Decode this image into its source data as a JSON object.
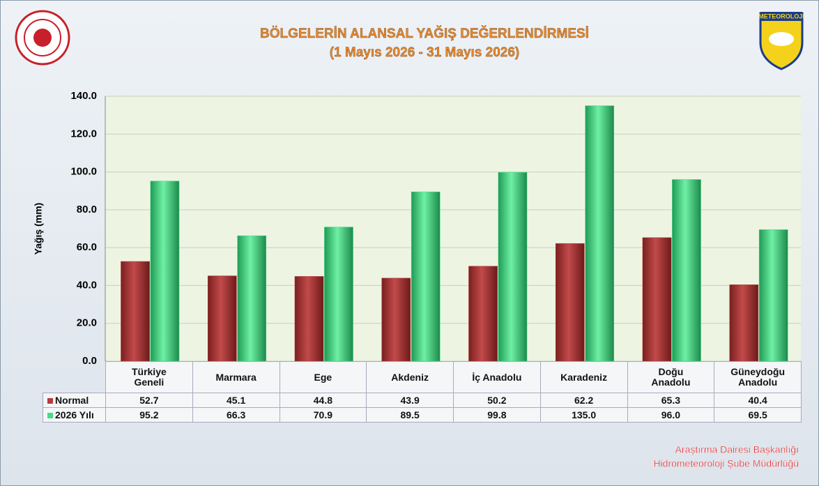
{
  "chart_data": {
    "type": "bar",
    "title": "BÖLGELERİN ALANSAL YAĞIŞ DEĞERLENDİRMESİ",
    "subtitle": "(1 Mayıs 2026 - 31 Mayıs 2026)",
    "y_label": "Yağış (mm)",
    "categories": [
      "Türkiye Geneli",
      "Marmara",
      "Ege",
      "Akdeniz",
      "İç Anadolu",
      "Karadeniz",
      "Doğu Anadolu",
      "Güneydoğu Anadolu"
    ],
    "series": [
      {
        "name": "Normal",
        "color": "#b53c3c",
        "values": [
          52.7,
          45.1,
          44.8,
          43.9,
          50.2,
          62.2,
          65.3,
          40.4
        ],
        "value_labels": [
          "52.7",
          "45.1",
          "44.8",
          "43.9",
          "50.2",
          "62.2",
          "65.3",
          "40.4"
        ]
      },
      {
        "name": "2026 Yılı",
        "color": "#45dc85",
        "values": [
          95.2,
          66.3,
          70.9,
          89.5,
          99.8,
          135.0,
          96.0,
          69.5
        ],
        "value_labels": [
          "95.2",
          "66.3",
          "70.9",
          "89.5",
          "99.8",
          "135.0",
          "96.0",
          "69.5"
        ]
      }
    ],
    "ylim": [
      0,
      140
    ],
    "yticks": [
      {
        "value": 0,
        "label": "0.0"
      },
      {
        "value": 20,
        "label": "20.0"
      },
      {
        "value": 40,
        "label": "40.0"
      },
      {
        "value": 60,
        "label": "60.0"
      },
      {
        "value": 80,
        "label": "80.0"
      },
      {
        "value": 100,
        "label": "100.0"
      },
      {
        "value": 120,
        "label": "120.0"
      },
      {
        "value": 140,
        "label": "140.0"
      }
    ],
    "grid": true,
    "logo_text": "METEOROLOJI",
    "footer": [
      "Araştırma Dairesi Başkanlığı",
      "Hidrometeoroloji Şube Müdürlüğü"
    ]
  }
}
